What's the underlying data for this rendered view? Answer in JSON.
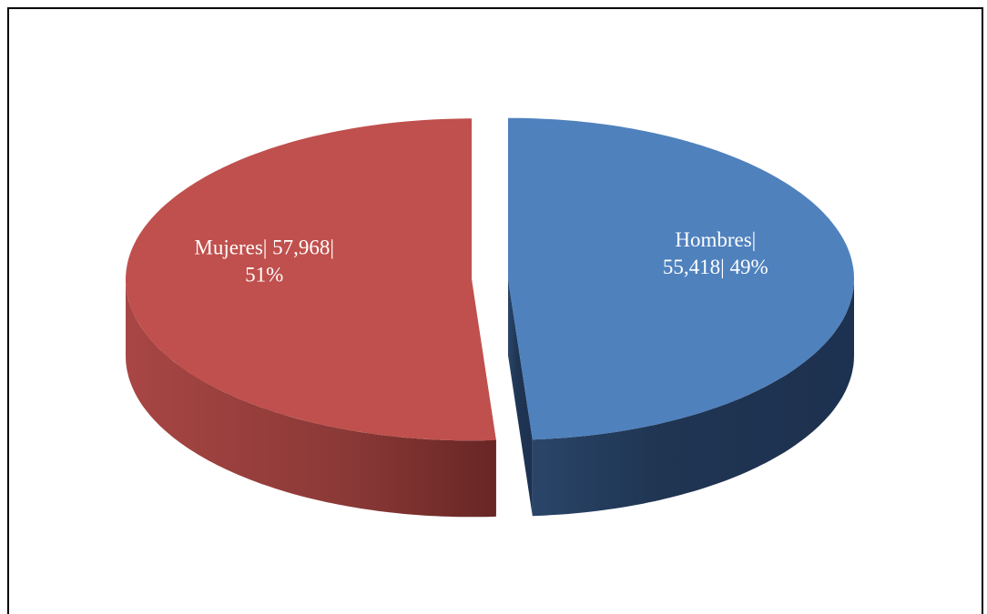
{
  "chart_data": {
    "type": "pie3d",
    "categories": [
      "Hombres",
      "Mujeres"
    ],
    "values": [
      55418,
      57968
    ],
    "value_labels": [
      [
        "Hombres|",
        "55,418| 49%"
      ],
      [
        "Mujeres| 57,968|",
        "51%"
      ]
    ],
    "colors": [
      "#4f81bd",
      "#c0504d"
    ]
  }
}
